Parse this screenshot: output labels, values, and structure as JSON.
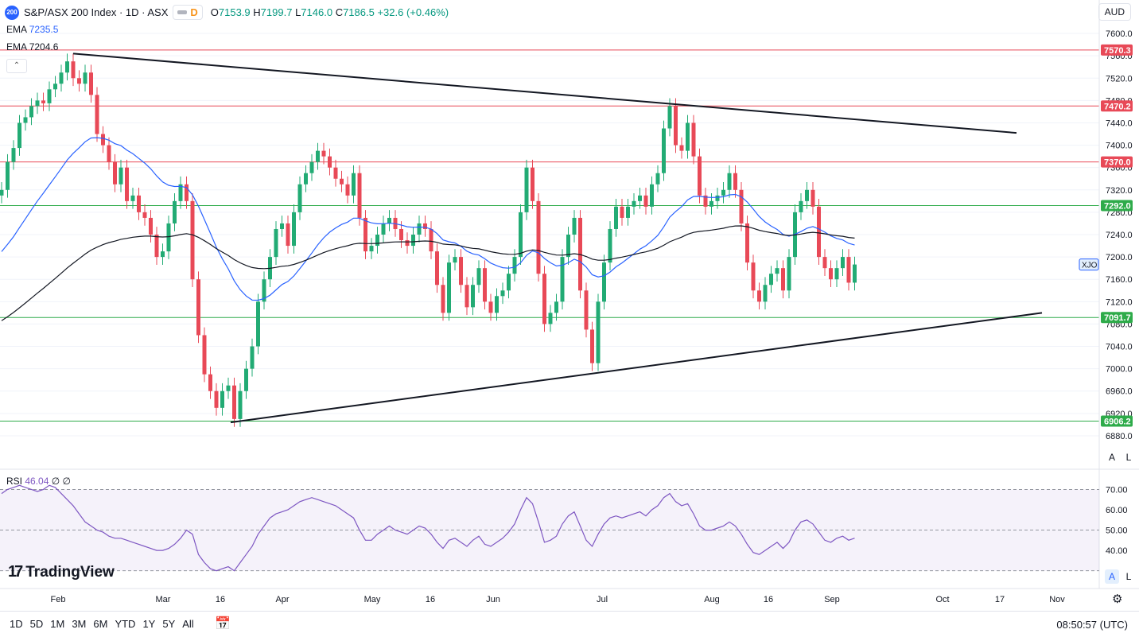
{
  "header": {
    "badge": "200",
    "symbol": "S&P/ASX 200 Index · 1D · ASX",
    "flag_letter": "D",
    "o_label": "O",
    "o": "7153.9",
    "h_label": "H",
    "h": "7199.7",
    "l_label": "L",
    "l": "7146.0",
    "c_label": "C",
    "c": "7186.5",
    "change": "+32.6 (+0.46%)",
    "currency": "AUD"
  },
  "indicators": {
    "ema1_label": "EMA",
    "ema1_value": "7235.5",
    "ema2_label": "EMA",
    "ema2_value": "7204.6",
    "rsi_label": "RSI",
    "rsi_value": "46.04",
    "rsi_extra": "∅ ∅"
  },
  "brand": "TradingView",
  "toolbar": {
    "ranges": [
      "1D",
      "5D",
      "1M",
      "3M",
      "6M",
      "YTD",
      "1Y",
      "5Y",
      "All"
    ],
    "clock": "08:50:57 (UTC)",
    "calendar_icon": "calendar-range-icon"
  },
  "axis_buttons": {
    "auto": "A",
    "log": "L"
  },
  "colors": {
    "up": "#22ab74",
    "down": "#e84957",
    "ema1": "#2962ff",
    "ema2": "#131722",
    "resistance": "#e84957",
    "support": "#2eab4a",
    "rsi": "#7e57c2"
  },
  "chart_data": {
    "type": "candlestick",
    "ylim": [
      6860,
      7620
    ],
    "yticks": [
      6880,
      6920,
      6960,
      7000,
      7040,
      7080,
      7120,
      7160,
      7200,
      7240,
      7280,
      7320,
      7360,
      7400,
      7440,
      7480,
      7520,
      7560,
      7600
    ],
    "x_labels": [
      "Feb",
      "Mar",
      "16",
      "Apr",
      "May",
      "16",
      "Jun",
      "Jul",
      "Aug",
      "16",
      "Sep",
      "Oct",
      "17",
      "Nov"
    ],
    "symbol_label": "XJO",
    "last_price": 7186.5,
    "closes": [
      7320,
      7370,
      7395,
      7440,
      7450,
      7470,
      7480,
      7475,
      7500,
      7510,
      7530,
      7550,
      7520,
      7510,
      7530,
      7490,
      7420,
      7400,
      7370,
      7330,
      7360,
      7300,
      7310,
      7280,
      7270,
      7240,
      7200,
      7210,
      7260,
      7300,
      7330,
      7300,
      7160,
      7060,
      6990,
      6960,
      6930,
      6960,
      6970,
      6910,
      6960,
      7000,
      7040,
      7120,
      7160,
      7200,
      7250,
      7260,
      7220,
      7280,
      7330,
      7350,
      7370,
      7390,
      7380,
      7360,
      7340,
      7330,
      7310,
      7350,
      7270,
      7210,
      7220,
      7240,
      7260,
      7270,
      7250,
      7230,
      7220,
      7240,
      7260,
      7250,
      7210,
      7150,
      7100,
      7190,
      7200,
      7150,
      7110,
      7150,
      7180,
      7120,
      7100,
      7130,
      7140,
      7170,
      7200,
      7280,
      7360,
      7300,
      7170,
      7080,
      7100,
      7120,
      7200,
      7240,
      7270,
      7140,
      7070,
      7010,
      7120,
      7190,
      7250,
      7290,
      7270,
      7290,
      7300,
      7310,
      7290,
      7330,
      7350,
      7430,
      7470,
      7400,
      7390,
      7440,
      7380,
      7310,
      7290,
      7300,
      7310,
      7320,
      7350,
      7320,
      7260,
      7190,
      7140,
      7120,
      7150,
      7170,
      7180,
      7140,
      7200,
      7280,
      7300,
      7320,
      7290,
      7200,
      7180,
      7160,
      7180,
      7200,
      7154,
      7186.5
    ],
    "ema1": {
      "name": "EMA",
      "value": 7235.5
    },
    "ema2": {
      "name": "EMA",
      "value": 7204.6
    },
    "horizontal_levels": [
      {
        "value": 7570.3,
        "kind": "resistance"
      },
      {
        "value": 7470.2,
        "kind": "resistance"
      },
      {
        "value": 7370.0,
        "kind": "resistance"
      },
      {
        "value": 7292.0,
        "kind": "support"
      },
      {
        "value": 7091.7,
        "kind": "support"
      },
      {
        "value": 6906.2,
        "kind": "support"
      }
    ],
    "trendlines": [
      {
        "from": [
          0,
          7564
        ],
        "to": [
          180,
          7422
        ]
      },
      {
        "from": [
          0,
          6904
        ],
        "to": [
          180,
          7100
        ]
      }
    ],
    "rsi": {
      "levels": [
        70,
        50,
        30
      ],
      "yticks": [
        40,
        50,
        60,
        70
      ],
      "value": 46.04,
      "values": [
        68,
        70,
        71,
        72,
        71,
        70,
        69,
        70,
        72,
        71,
        68,
        65,
        62,
        58,
        54,
        52,
        50,
        49,
        47,
        46,
        46,
        45,
        44,
        43,
        42,
        41,
        40,
        40,
        41,
        43,
        46,
        50,
        48,
        38,
        34,
        31,
        30,
        31,
        32,
        30,
        34,
        38,
        42,
        48,
        52,
        56,
        58,
        59,
        60,
        62,
        64,
        65,
        66,
        65,
        64,
        63,
        62,
        60,
        58,
        56,
        50,
        45,
        45,
        48,
        50,
        52,
        50,
        49,
        48,
        50,
        52,
        51,
        48,
        44,
        41,
        45,
        46,
        44,
        42,
        45,
        47,
        43,
        42,
        44,
        46,
        49,
        53,
        60,
        66,
        63,
        54,
        44,
        45,
        47,
        53,
        57,
        59,
        52,
        45,
        42,
        48,
        53,
        56,
        57,
        56,
        57,
        58,
        59,
        57,
        60,
        62,
        66,
        68,
        64,
        62,
        63,
        58,
        52,
        50,
        50,
        51,
        52,
        54,
        52,
        48,
        43,
        39,
        38,
        40,
        42,
        44,
        41,
        44,
        50,
        54,
        55,
        53,
        49,
        45,
        44,
        46,
        47,
        45,
        46.04
      ]
    }
  }
}
